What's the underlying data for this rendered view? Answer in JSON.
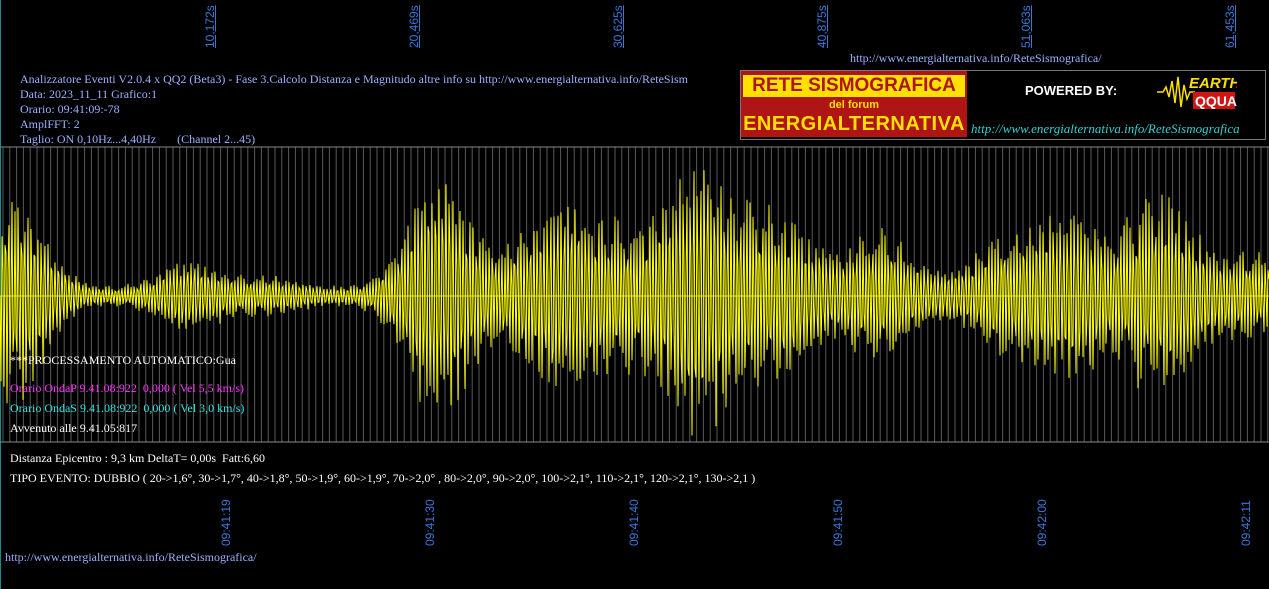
{
  "top_ticks": [
    "10,172s",
    "20,469s",
    "30,625s",
    "40,875s",
    "51,063s",
    "61,453s"
  ],
  "top_url": "http://www.energialternativa.info/ReteSismografica/",
  "header": {
    "line1": "Analizzatore Eventi V2.0.4 x QQ2 (Beta3) - Fase 3.Calcolo Distanza e Magnitudo altre info su http://www.energialternativa.info/ReteSism",
    "line2": "Data: 2023_11_11 Grafico:1",
    "line3": "Orario: 09:41:09:-78",
    "line4": "AmplFFT: 2",
    "line5": "Taglio: ON 0,10Hz...4,40Hz       (Channel 2...45)"
  },
  "logo": {
    "line1": "RETE SISMOGRAFICA",
    "line2": "del forum",
    "line3": "ENERGIALTERNATIVA",
    "powered": "POWERED BY:",
    "brand_top": "EARTH",
    "brand_bottom": "QQUAKE",
    "url": "http://www.energialternativa.info/ReteSismografica"
  },
  "processing": {
    "auto": "***PROCESSAMENTO AUTOMATICO:Gua",
    "onda_p": "Orario OndaP 9.41.08:922  0,000 ( Vel 5,5 km/s)",
    "onda_s": "Orario OndaS 9.41.08:922  0,000 ( Vel 3,0 km/s)",
    "avvenuto": "Avvenuto alle 9.41.05:817"
  },
  "results": {
    "distanza": "Distanza Epicentro : 9,3 km DeltaT= 0,00s  Fatt:6,60",
    "tipo": "TIPO EVENTO: DUBBIO ( 20->1,6°, 30->1,7°, 40->1,8°, 50->1,9°, 60->1,9°, 70->2,0° , 80->2,0°, 90->2,0°, 100->2,1°, 110->2,1°, 120->2,1°, 130->2,1 )"
  },
  "bottom_ticks": [
    "09:41:19",
    "09:41:30",
    "09:41:40",
    "09:41:50",
    "09:42:00",
    "09:42:11"
  ],
  "footer_url": "http://www.energialternativa.info/ReteSismografica/",
  "colors": {
    "background": "#000000",
    "signal": "#ffff00",
    "grid": "#8a8a8a",
    "tick_labels": "#3a78d8",
    "header_text": "#9bb0ff",
    "onda_p": "#ff33ff",
    "onda_s": "#33e6e6"
  }
}
